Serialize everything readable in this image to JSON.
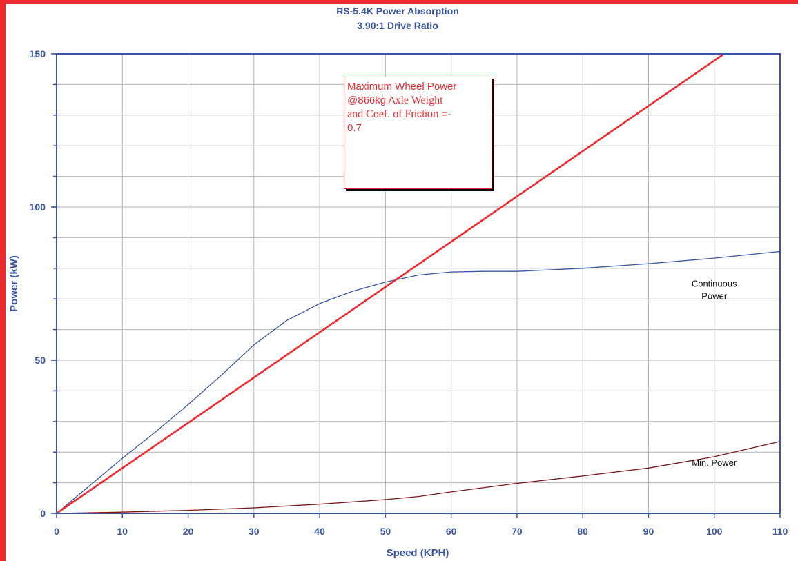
{
  "colors": {
    "frame": "#ee2a2f",
    "axis": "#3a55a4",
    "grid": "#b4b4b4",
    "continuous": "#3a55a4",
    "min": "#7a1518",
    "wheel_limit": "#ee2a2f"
  },
  "annotation": {
    "line1": "Maximum Wheel Power",
    "line2_a": "@866kg A",
    "line2_b": "xle Weight",
    "line3_a": "and Coef. of F",
    "line3_b": "riction =-",
    "line4": "0.7"
  },
  "chart_data": {
    "type": "line",
    "title": "RS-5.4K Power Absorption",
    "subtitle": "3.90:1 Drive Ratio",
    "xlabel": "Speed  (KPH)",
    "ylabel": "Power  (kW)",
    "xlim": [
      0,
      110
    ],
    "ylim": [
      0,
      150
    ],
    "x_ticks": [
      "0",
      "10",
      "20",
      "30",
      "40",
      "50",
      "60",
      "70",
      "80",
      "90",
      "100",
      "110"
    ],
    "y_ticks": [
      "0",
      "50",
      "100",
      "150"
    ],
    "grid": true,
    "series": [
      {
        "name": "Continuous Power",
        "label_lines": [
          "Continuous",
          "Power"
        ],
        "label_at": [
          100,
          74
        ],
        "color": "#3a55a4",
        "x": [
          0,
          5,
          10,
          15,
          20,
          25,
          30,
          35,
          40,
          45,
          50,
          55,
          60,
          65,
          70,
          80,
          90,
          100,
          110
        ],
        "y": [
          0,
          9,
          18,
          26.5,
          35.5,
          45,
          55,
          63,
          68.5,
          72.5,
          75.5,
          77.8,
          78.8,
          79,
          79,
          80,
          81.5,
          83.3,
          85.5
        ]
      },
      {
        "name": "Min. Power",
        "label_lines": [
          "Min. Power"
        ],
        "label_at": [
          100,
          15.5
        ],
        "color": "#7a1518",
        "x": [
          0,
          10,
          20,
          30,
          40,
          50,
          55,
          60,
          70,
          80,
          90,
          100,
          110
        ],
        "y": [
          0,
          0.4,
          1,
          1.8,
          3,
          4.5,
          5.5,
          7,
          9.8,
          12.2,
          14.8,
          18.5,
          23.5
        ]
      },
      {
        "name": "Maximum Wheel Power",
        "color": "#ee2a2f",
        "x": [
          0,
          101.5
        ],
        "y": [
          0,
          150
        ]
      }
    ]
  }
}
